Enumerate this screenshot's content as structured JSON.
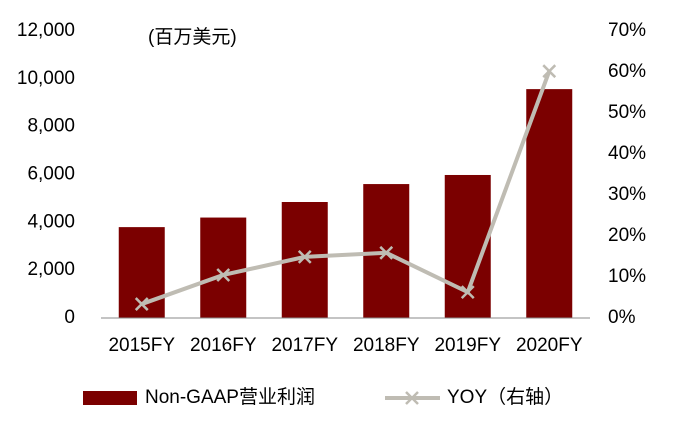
{
  "chart_data": {
    "type": "bar-line",
    "annotation": "(百万美元)",
    "categories": [
      "2015FY",
      "2016FY",
      "2017FY",
      "2018FY",
      "2019FY",
      "2020FY"
    ],
    "series": [
      {
        "name": "Non-GAAP营业利润",
        "type": "bar",
        "color": "#7b0000",
        "values": [
          3800,
          4200,
          4850,
          5600,
          5980,
          9570
        ]
      },
      {
        "name": "YOY（右轴）",
        "type": "line",
        "axis": "y2",
        "color": "#bfbcb3",
        "values": [
          3.4,
          10.5,
          14.9,
          15.9,
          6.3,
          60.2
        ]
      }
    ],
    "ylim": [
      0,
      12000
    ],
    "yticks": [
      0,
      {
        "value": 2000,
        "label": "2,000"
      },
      {
        "value": 4000,
        "label": "4,000"
      },
      {
        "value": 6000,
        "label": "6,000"
      },
      {
        "value": 8000,
        "label": "8,000"
      },
      {
        "value": 10000,
        "label": "10,000"
      },
      {
        "value": 12000,
        "label": "12,000"
      }
    ],
    "y2lim": [
      0,
      70
    ],
    "y2ticks": [
      {
        "value": 0,
        "label": "0%"
      },
      {
        "value": 10,
        "label": "10%"
      },
      {
        "value": 20,
        "label": "20%"
      },
      {
        "value": 30,
        "label": "30%"
      },
      {
        "value": 40,
        "label": "40%"
      },
      {
        "value": 50,
        "label": "50%"
      },
      {
        "value": 60,
        "label": "60%"
      },
      {
        "value": 70,
        "label": "70%"
      }
    ],
    "grid": false,
    "legend": "bottom"
  }
}
